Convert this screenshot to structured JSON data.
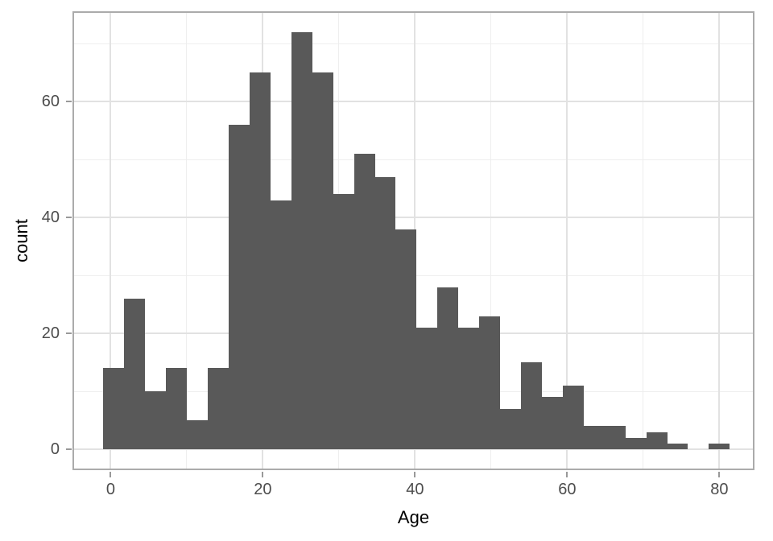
{
  "figure": {
    "background": "#ffffff"
  },
  "chart_data": {
    "type": "bar",
    "subtype": "histogram",
    "title": "",
    "xlabel": "Age",
    "ylabel": "count",
    "grid": true,
    "legend_position": "none",
    "bar_color": "#595959",
    "panel_background": "#ffffff",
    "panel_border_color": "#ababab",
    "grid_major_color": "#e2e2e2",
    "grid_minor_color": "#eeeeee",
    "tick_mark_color": "#999999",
    "tick_label_color": "#4d4d4d",
    "axis_title_color": "#000000",
    "bin_start": -0.95,
    "bin_width": 2.744,
    "counts": [
      14,
      26,
      10,
      14,
      5,
      14,
      56,
      65,
      43,
      72,
      65,
      44,
      51,
      47,
      38,
      21,
      28,
      21,
      23,
      7,
      15,
      9,
      11,
      4,
      4,
      2,
      3,
      1,
      0,
      1
    ],
    "total_count": 714,
    "x_ticks": [
      0,
      20,
      40,
      60,
      80
    ],
    "y_ticks": [
      0,
      20,
      40,
      60
    ],
    "x_minor_breaks": [
      10,
      30,
      50,
      70
    ],
    "y_minor_breaks": [
      10,
      30,
      50,
      70
    ],
    "xlim": [
      -5.02,
      84.62
    ],
    "ylim": [
      -3.6,
      75.6
    ]
  }
}
